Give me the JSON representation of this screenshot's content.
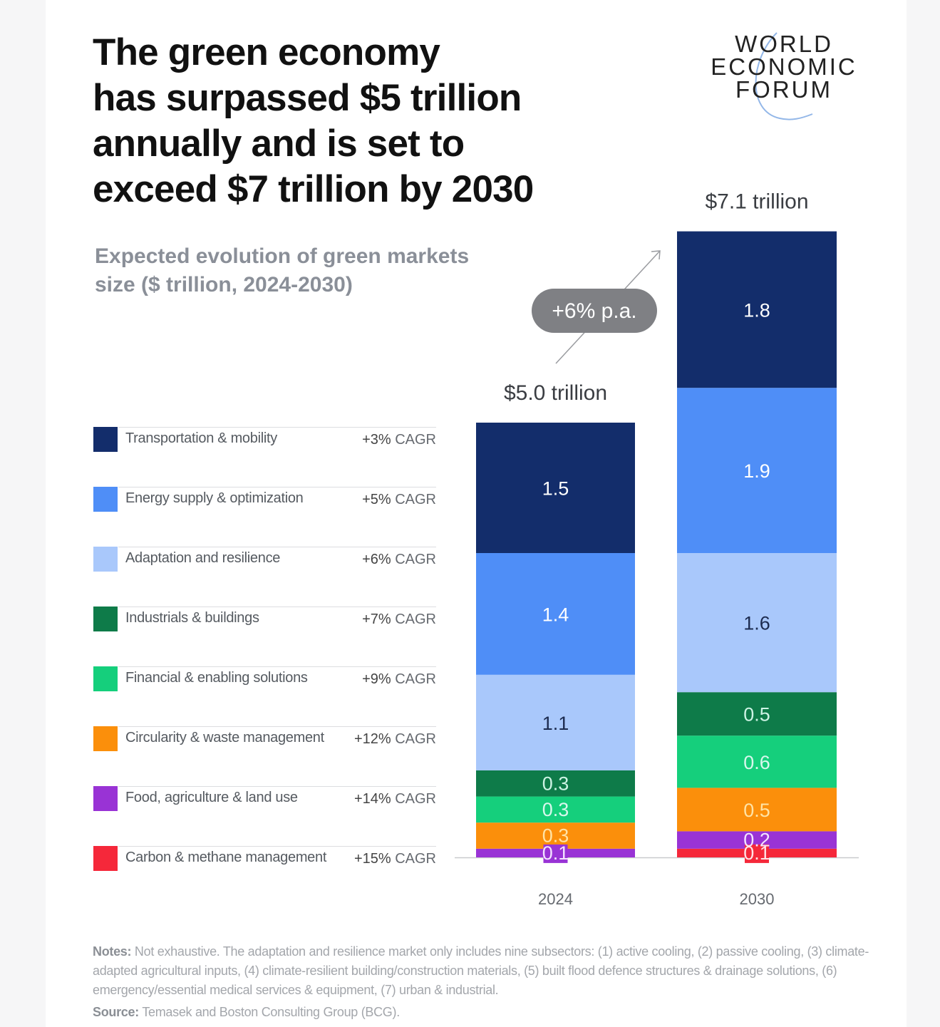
{
  "header": {
    "title_lines": [
      "The green economy",
      "has surpassed $5 trillion",
      "annually and is set to",
      "exceed $7 trillion by 2030"
    ],
    "logo_lines": [
      "WORLD",
      "ECONOMIC",
      "FORUM"
    ],
    "subtitle_lines": [
      "Expected evolution of green markets",
      "size ($ trillion, 2024-2030)"
    ]
  },
  "colors": {
    "transport": "#132d6b",
    "energy": "#4f8ef7",
    "adaptation": "#a9c8fb",
    "industrials": "#0e7b49",
    "financial": "#15cf7c",
    "circularity": "#fb8f0b",
    "food": "#9933d5",
    "carbon": "#f5283a",
    "growth_pill": "#7f8084"
  },
  "chart_data": {
    "type": "bar",
    "stacked": true,
    "title": "Expected evolution of green markets size ($ trillion, 2024-2030)",
    "xlabel": "",
    "ylabel": "$ trillion",
    "categories": [
      "2024",
      "2030"
    ],
    "totals": [
      5.0,
      7.1
    ],
    "total_labels": [
      "$5.0 trillion",
      "$7.1 trillion"
    ],
    "growth_annotation": "+6% p.a.",
    "legend_position": "left",
    "grid": false,
    "series": [
      {
        "key": "transport",
        "name": "Transportation & mobility",
        "cagr": "+3%",
        "values": [
          1.5,
          1.8
        ],
        "labels": [
          "1.5",
          "1.8"
        ],
        "label_color": "#ffffff"
      },
      {
        "key": "energy",
        "name": "Energy supply & optimization",
        "cagr": "+5%",
        "values": [
          1.4,
          1.9
        ],
        "labels": [
          "1.4",
          "1.9"
        ],
        "label_color": "#ffffff"
      },
      {
        "key": "adaptation",
        "name": "Adaptation and resilience",
        "cagr": "+6%",
        "values": [
          1.1,
          1.6
        ],
        "labels": [
          "1.1",
          "1.6"
        ],
        "label_color": "#1c2b4f"
      },
      {
        "key": "industrials",
        "name": "Industrials & buildings",
        "cagr": "+7%",
        "values": [
          0.3,
          0.5
        ],
        "labels": [
          "0.3",
          "0.5"
        ],
        "label_color": "#cdf3e4"
      },
      {
        "key": "financial",
        "name": "Financial & enabling solutions",
        "cagr": "+9%",
        "values": [
          0.3,
          0.6
        ],
        "labels": [
          "0.3",
          "0.6"
        ],
        "label_color": "#d8f7ec"
      },
      {
        "key": "circularity",
        "name": "Circularity & waste management",
        "cagr": "+12%",
        "values": [
          0.3,
          0.5
        ],
        "labels": [
          "0.3",
          "0.5"
        ],
        "label_color": "#ffe3a6"
      },
      {
        "key": "food",
        "name": "Food, agriculture & land use",
        "cagr": "+14%",
        "values": [
          0.1,
          0.2
        ],
        "labels": [
          "0.1",
          "0.2"
        ],
        "label_color": "#f3e3ff"
      },
      {
        "key": "carbon",
        "name": "Carbon & methane management",
        "cagr": "+15%",
        "values": [
          0.0,
          0.1
        ],
        "labels": [
          "",
          "0.1"
        ],
        "label_color": "#ffe3e6"
      }
    ],
    "cagr_suffix": "CAGR"
  },
  "footer": {
    "notes_label": "Notes:",
    "notes_text": "Not exhaustive. The adaptation and resilience market only includes nine subsectors: (1) active cooling, (2) passive cooling, (3) climate-adapted agricultural inputs, (4) climate-resilient building/construction materials, (5) built flood defence structures & drainage solutions, (6) emergency/essential medical services & equipment, (7) urban & industrial.",
    "source_label": "Source:",
    "source_text": "Temasek and Boston Consulting Group (BCG)."
  }
}
